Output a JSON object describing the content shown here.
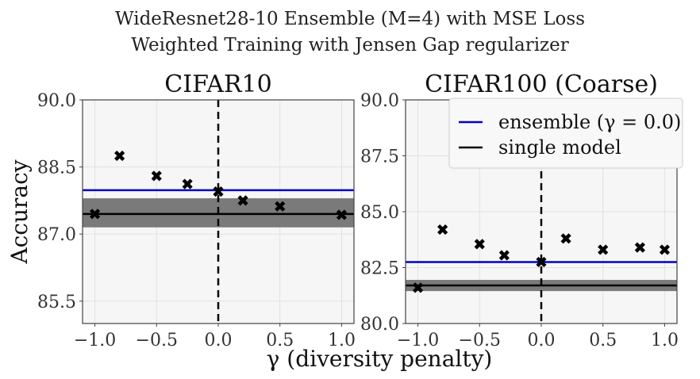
{
  "suptitle": {
    "line1": "WideResnet28-10 Ensemble (M=4) with MSE Loss",
    "line2": "Weighted Training with Jensen Gap regularizer"
  },
  "xlabel": "γ (diversity penalty)",
  "ylabel": "Accuracy",
  "legend": {
    "entries": [
      {
        "label": "ensemble (γ = 0.0)",
        "color": "#0000cc"
      },
      {
        "label": "single model",
        "color": "#000000"
      }
    ],
    "position": "top-right of right panel"
  },
  "chart_data": [
    {
      "type": "scatter",
      "title": "CIFAR10",
      "xlabel": "γ (diversity penalty)",
      "ylabel": "Accuracy",
      "xlim": [
        -1.1,
        1.1
      ],
      "ylim": [
        85.0,
        90.0
      ],
      "xticks": [
        "−1.0",
        "−0.5",
        "0.0",
        "0.5",
        "1.0"
      ],
      "xtick_values": [
        -1.0,
        -0.5,
        0.0,
        0.5,
        1.0
      ],
      "yticks": [
        "85.5",
        "87.0",
        "88.5",
        "90.0"
      ],
      "ytick_values": [
        85.5,
        87.0,
        88.5,
        90.0
      ],
      "points": {
        "x": [
          -1.0,
          -0.8,
          -0.5,
          -0.25,
          0.0,
          0.2,
          0.5,
          1.0
        ],
        "y": [
          87.45,
          88.75,
          88.3,
          88.12,
          87.95,
          87.75,
          87.62,
          87.43
        ]
      },
      "ensemble_line": 87.98,
      "single_model": {
        "mean": 87.45,
        "band": [
          87.15,
          87.8
        ]
      },
      "vline_x": 0.0,
      "grid": true
    },
    {
      "type": "scatter",
      "title": "CIFAR100 (Coarse)",
      "xlabel": "γ (diversity penalty)",
      "ylabel": "Accuracy",
      "xlim": [
        -1.1,
        1.1
      ],
      "ylim": [
        80.0,
        90.0
      ],
      "xticks": [
        "−1.0",
        "−0.5",
        "0.0",
        "0.5",
        "1.0"
      ],
      "xtick_values": [
        -1.0,
        -0.5,
        0.0,
        0.5,
        1.0
      ],
      "yticks": [
        "80.0",
        "82.5",
        "85.0",
        "87.5",
        "90.0"
      ],
      "ytick_values": [
        80.0,
        82.5,
        85.0,
        87.5,
        90.0
      ],
      "points": {
        "x": [
          -1.0,
          -0.8,
          -0.5,
          -0.3,
          0.0,
          0.2,
          0.5,
          0.8,
          1.0
        ],
        "y": [
          81.6,
          84.2,
          83.55,
          83.05,
          82.75,
          83.8,
          83.3,
          83.4,
          83.3
        ]
      },
      "ensemble_line": 82.75,
      "single_model": {
        "mean": 81.7,
        "band": [
          81.45,
          81.95
        ]
      },
      "vline_x": 0.0,
      "grid": true
    }
  ]
}
